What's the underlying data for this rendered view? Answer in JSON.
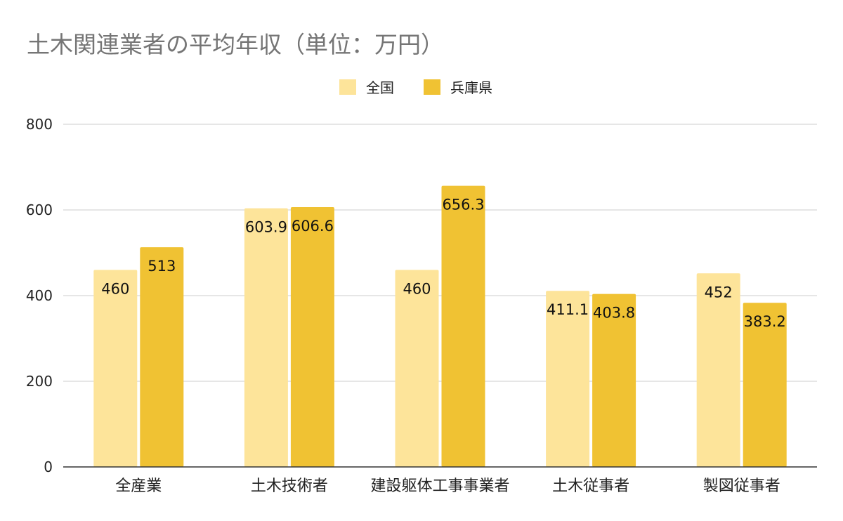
{
  "chart_data": {
    "type": "bar",
    "title": "土木関連業者の平均年収（単位：万円）",
    "categories": [
      "全産業",
      "土木技術者",
      "建設躯体工事事業者",
      "土木従事者",
      "製図従事者"
    ],
    "series": [
      {
        "name": "全国",
        "color": "#fde49a",
        "values": [
          460,
          603.9,
          460,
          411.1,
          452
        ],
        "labels": [
          "460",
          "603.9",
          "460",
          "411.1",
          "452"
        ]
      },
      {
        "name": "兵庫県",
        "color": "#f0c233",
        "values": [
          513,
          606.6,
          656.3,
          403.8,
          383.2
        ],
        "labels": [
          "513",
          "606.6",
          "656.3",
          "403.8",
          "383.2"
        ]
      }
    ],
    "ylim": [
      0,
      800
    ],
    "yticks": [
      0,
      200,
      400,
      600,
      800
    ],
    "ytick_labels": [
      "0",
      "200",
      "400",
      "600",
      "800"
    ],
    "grid": true,
    "legend": "top-center"
  }
}
